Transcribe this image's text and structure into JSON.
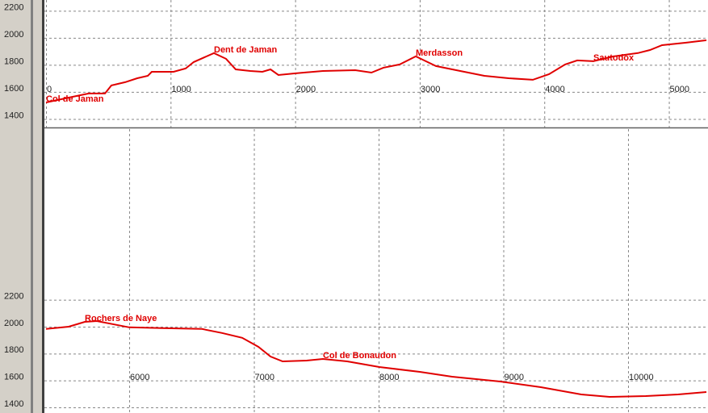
{
  "chart_data": [
    {
      "type": "line",
      "color": "#e00000",
      "grid": true,
      "xlim": [
        -13,
        5314
      ],
      "ylim": [
        1337,
        2280
      ],
      "xticks": [
        0,
        1000,
        2000,
        3000,
        4000,
        5000
      ],
      "yticks": [
        1400,
        1600,
        1800,
        2000,
        2200
      ],
      "x": [
        0,
        214,
        343,
        473,
        525,
        635,
        732,
        817,
        849,
        1024,
        1121,
        1186,
        1348,
        1445,
        1523,
        1640,
        1737,
        1802,
        1866,
        1996,
        2223,
        2482,
        2612,
        2709,
        2839,
        2968,
        3130,
        3325,
        3519,
        3714,
        3908,
        4038,
        4167,
        4264,
        4394,
        4556,
        4751,
        4848,
        4945,
        5139,
        5301
      ],
      "values": [
        1522,
        1564,
        1588,
        1588,
        1648,
        1672,
        1701,
        1719,
        1749,
        1749,
        1773,
        1821,
        1887,
        1845,
        1767,
        1755,
        1749,
        1767,
        1725,
        1737,
        1755,
        1761,
        1743,
        1779,
        1803,
        1863,
        1791,
        1755,
        1719,
        1701,
        1690,
        1731,
        1803,
        1833,
        1827,
        1863,
        1887,
        1910,
        1946,
        1964,
        1982
      ],
      "annotations": [
        {
          "text": "Col de Jaman",
          "x": 0,
          "y": 1522
        },
        {
          "text": "Dent de Jaman",
          "x": 1348,
          "y": 1887
        },
        {
          "text": "Merdasson",
          "x": 2968,
          "y": 1863
        },
        {
          "text": "Sautodox",
          "x": 4394,
          "y": 1827
        }
      ]
    },
    {
      "type": "line",
      "color": "#e00000",
      "grid": true,
      "xlim": [
        5320,
        10641
      ],
      "ylim": [
        1358,
        3470
      ],
      "xticks": [
        6000,
        7000,
        8000,
        9000,
        10000
      ],
      "yticks": [
        1400,
        1600,
        1800,
        2000,
        2200
      ],
      "x": [
        5333,
        5515,
        5644,
        5741,
        6000,
        6259,
        6583,
        6744,
        6906,
        7036,
        7133,
        7230,
        7424,
        7553,
        7748,
        8006,
        8330,
        8589,
        8977,
        9301,
        9625,
        9851,
        10142,
        10401,
        10628
      ],
      "values": [
        1983,
        2000,
        2036,
        2042,
        1995,
        1989,
        1983,
        1953,
        1917,
        1850,
        1778,
        1742,
        1748,
        1760,
        1742,
        1700,
        1664,
        1628,
        1592,
        1550,
        1496,
        1478,
        1484,
        1496,
        1514
      ],
      "annotations": [
        {
          "text": "Rochers de Naye",
          "x": 5644,
          "y": 2036
        },
        {
          "text": "Col de Bonaudon",
          "x": 7553,
          "y": 1760
        }
      ]
    }
  ]
}
